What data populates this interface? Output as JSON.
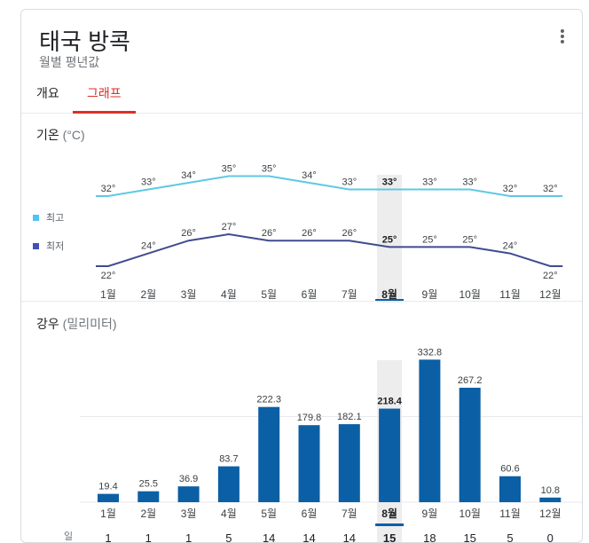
{
  "header": {
    "title": "태국 방콕",
    "subtitle": "월별 평년값"
  },
  "tabs": [
    {
      "label": "개요"
    },
    {
      "label": "그래프"
    }
  ],
  "temperature": {
    "title": "기온",
    "unit": "(°C)",
    "legend": [
      {
        "label": "최고",
        "color": "#4fc3f7"
      },
      {
        "label": "최저",
        "color": "#3f51b5"
      }
    ]
  },
  "rain": {
    "title": "강우",
    "unit": "(밀리미터)",
    "days_label": "일"
  },
  "colors": {
    "high": "#5ec8e5",
    "low": "#414b8f",
    "bar": "#0b5fa5",
    "accent": "#d93025",
    "selected_bg": "#ededed"
  },
  "selected_index": 7,
  "chart_data": [
    {
      "type": "line",
      "categories": [
        "1월",
        "2월",
        "3월",
        "4월",
        "5월",
        "6월",
        "7월",
        "8월",
        "9월",
        "10월",
        "11월",
        "12월"
      ],
      "series": [
        {
          "name": "최고",
          "values": [
            32,
            33,
            34,
            35,
            35,
            34,
            33,
            33,
            33,
            33,
            32,
            32
          ],
          "labels": [
            "32°",
            "33°",
            "34°",
            "35°",
            "35°",
            "34°",
            "33°",
            "33°",
            "33°",
            "33°",
            "32°",
            "32°"
          ]
        },
        {
          "name": "최저",
          "values": [
            22,
            24,
            26,
            27,
            26,
            26,
            26,
            25,
            25,
            25,
            24,
            22
          ],
          "labels": [
            "22°",
            "24°",
            "26°",
            "27°",
            "26°",
            "26°",
            "26°",
            "25°",
            "25°",
            "25°",
            "24°",
            "22°"
          ]
        }
      ]
    },
    {
      "type": "bar",
      "categories": [
        "1월",
        "2월",
        "3월",
        "4월",
        "5월",
        "6월",
        "7월",
        "8월",
        "9월",
        "10월",
        "11월",
        "12월"
      ],
      "values": [
        19.4,
        25.5,
        36.9,
        83.7,
        222.3,
        179.8,
        182.1,
        218.4,
        332.8,
        267.2,
        60.6,
        10.8
      ],
      "labels": [
        "19.4",
        "25.5",
        "36.9",
        "83.7",
        "222.3",
        "179.8",
        "182.1",
        "218.4",
        "332.8",
        "267.2",
        "60.6",
        "10.8"
      ],
      "rain_days": [
        "1",
        "1",
        "1",
        "5",
        "14",
        "14",
        "14",
        "15",
        "18",
        "15",
        "5",
        "0"
      ]
    }
  ]
}
